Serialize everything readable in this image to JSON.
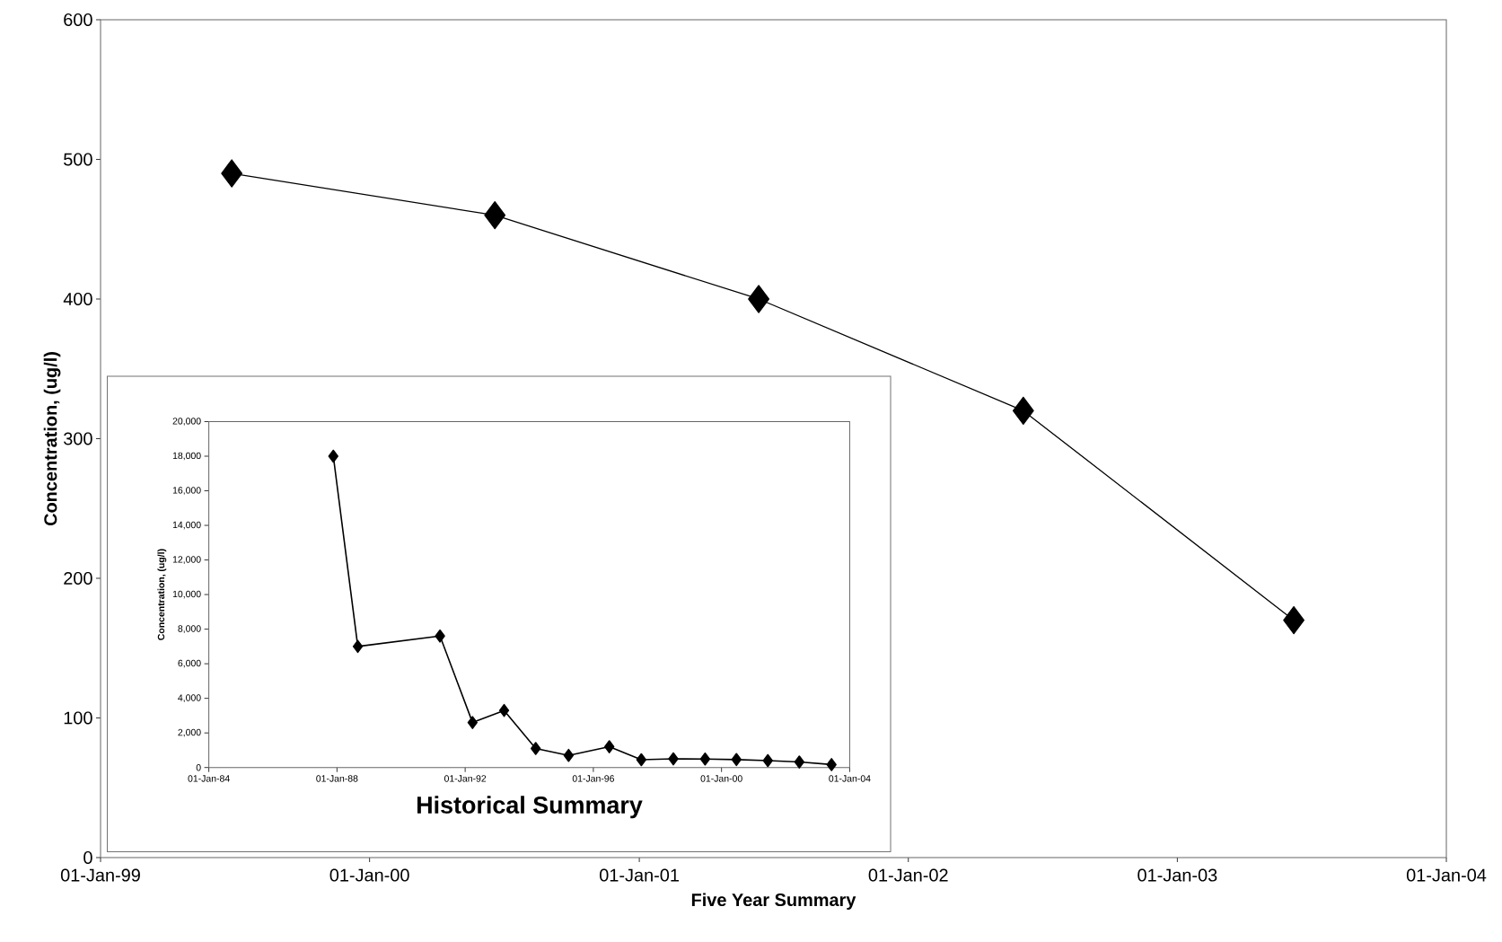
{
  "chart_data": [
    {
      "type": "line",
      "xlabel": "Five Year Summary",
      "ylabel": "Concentration, (ug/l)",
      "x": [
        "1999-06-28",
        "2000-06-19",
        "2001-06-12",
        "2002-06-06",
        "2003-06-08"
      ],
      "values": [
        490,
        460,
        400,
        320,
        170
      ],
      "color": "#000000",
      "marker": "diamond",
      "line_style": "solid",
      "xlim": [
        "1999-01-01",
        "2004-01-01"
      ],
      "xticks": [
        {
          "value": "1999-01-01",
          "label": "01-Jan-99"
        },
        {
          "value": "2000-01-01",
          "label": "01-Jan-00"
        },
        {
          "value": "2001-01-01",
          "label": "01-Jan-01"
        },
        {
          "value": "2002-01-01",
          "label": "01-Jan-02"
        },
        {
          "value": "2003-01-01",
          "label": "01-Jan-03"
        },
        {
          "value": "2004-01-01",
          "label": "01-Jan-04"
        }
      ],
      "ylim": [
        0,
        600
      ],
      "yticks": [
        0,
        100,
        200,
        300,
        400,
        500,
        600
      ]
    },
    {
      "type": "line",
      "title": "Historical Summary",
      "ylabel": "Concentration, (ug/l)",
      "x": [
        "1987-11-20",
        "1988-08-25",
        "1991-03-20",
        "1992-03-25",
        "1993-03-20",
        "1994-03-15",
        "1995-03-25",
        "1996-07-01",
        "1997-07-01",
        "1998-07-01",
        "1999-06-28",
        "2000-06-19",
        "2001-06-12",
        "2002-06-06",
        "2003-06-08"
      ],
      "values": [
        18000,
        7000,
        7600,
        2600,
        3300,
        1100,
        700,
        1200,
        450,
        500,
        490,
        460,
        400,
        320,
        170
      ],
      "color": "#000000",
      "marker": "diamond",
      "line_style": "solid",
      "xlim": [
        "1984-01-01",
        "2004-01-01"
      ],
      "xticks": [
        {
          "value": "1984-01-01",
          "label": "01-Jan-84"
        },
        {
          "value": "1988-01-01",
          "label": "01-Jan-88"
        },
        {
          "value": "1992-01-01",
          "label": "01-Jan-92"
        },
        {
          "value": "1996-01-01",
          "label": "01-Jan-96"
        },
        {
          "value": "2000-01-01",
          "label": "01-Jan-00"
        },
        {
          "value": "2004-01-01",
          "label": "01-Jan-04"
        }
      ],
      "ylim": [
        0,
        20000
      ],
      "yticks": [
        0,
        {
          "value": 2000,
          "label": "2,000"
        },
        {
          "value": 4000,
          "label": "4,000"
        },
        {
          "value": 6000,
          "label": "6,000"
        },
        {
          "value": 8000,
          "label": "8,000"
        },
        {
          "value": 10000,
          "label": "10,000"
        },
        {
          "value": 12000,
          "label": "12,000"
        },
        {
          "value": 14000,
          "label": "14,000"
        },
        {
          "value": 16000,
          "label": "16,000"
        },
        {
          "value": 18000,
          "label": "18,000"
        },
        {
          "value": 20000,
          "label": "20,000"
        }
      ]
    }
  ]
}
